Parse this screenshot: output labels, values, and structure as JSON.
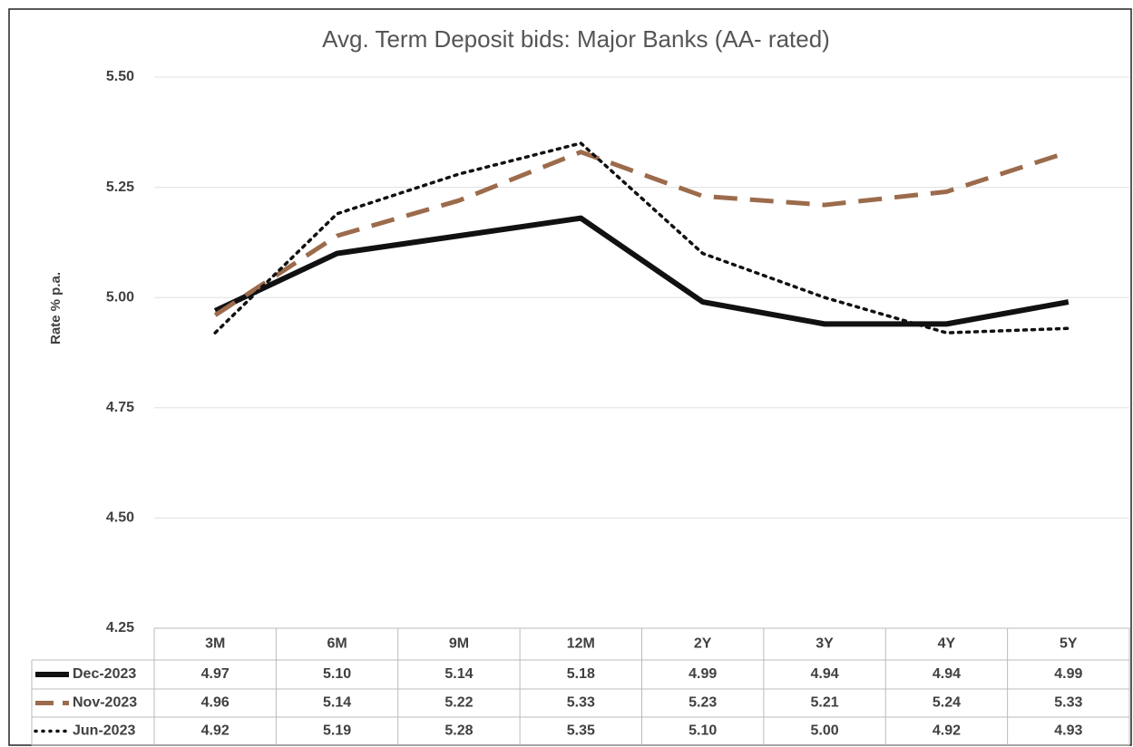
{
  "chart_data": {
    "type": "line",
    "title": "Avg. Term Deposit bids: Major Banks (AA- rated)",
    "y_label": "Rate % p.a.",
    "categories": [
      "3M",
      "6M",
      "9M",
      "12M",
      "2Y",
      "3Y",
      "4Y",
      "5Y"
    ],
    "series": [
      {
        "name": "Dec-2023",
        "color": "#111111",
        "style": "solid",
        "values": [
          4.97,
          5.1,
          5.14,
          5.18,
          4.99,
          4.94,
          4.94,
          4.99
        ],
        "value_labels": [
          "4.97",
          "5.10",
          "5.14",
          "5.18",
          "4.99",
          "4.94",
          "4.94",
          "4.99"
        ]
      },
      {
        "name": "Nov-2023",
        "color": "#9c6b4c",
        "style": "dashed",
        "values": [
          4.96,
          5.14,
          5.22,
          5.33,
          5.23,
          5.21,
          5.24,
          5.33
        ],
        "value_labels": [
          "4.96",
          "5.14",
          "5.22",
          "5.33",
          "5.23",
          "5.21",
          "5.24",
          "5.33"
        ]
      },
      {
        "name": "Jun-2023",
        "color": "#111111",
        "style": "dotted",
        "values": [
          4.92,
          5.19,
          5.28,
          5.35,
          5.1,
          5.0,
          4.92,
          4.93
        ],
        "value_labels": [
          "4.92",
          "5.19",
          "5.28",
          "5.35",
          "5.10",
          "5.00",
          "4.92",
          "4.93"
        ]
      }
    ],
    "ylim": [
      4.25,
      5.5
    ],
    "yticks": [
      {
        "value": 4.25,
        "label": "4.25"
      },
      {
        "value": 4.5,
        "label": "4.50"
      },
      {
        "value": 4.75,
        "label": "4.75"
      },
      {
        "value": 5,
        "label": "5.00"
      },
      {
        "value": 5.25,
        "label": "5.25"
      },
      {
        "value": 5.5,
        "label": "5.50"
      }
    ],
    "grid": true
  }
}
